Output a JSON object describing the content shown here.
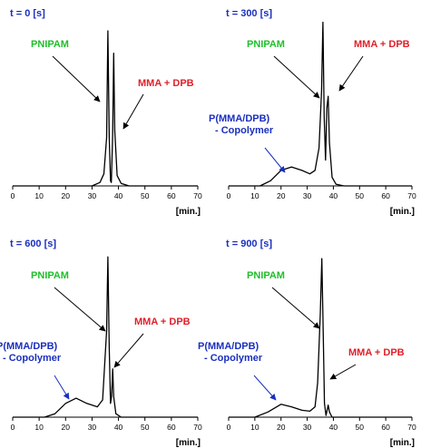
{
  "colors": {
    "title": "#1a2fbf",
    "pnipam": "#1fbf2a",
    "mma": "#e0202a",
    "copolymer": "#1a2fbf",
    "trace": "#000000",
    "copolymer_arrow": "#1a2fbf"
  },
  "chart_data": [
    {
      "type": "line",
      "title": "t = 0 [s]",
      "xunit": "[min.]",
      "xlim": [
        0,
        70
      ],
      "xticks": [
        0,
        10,
        20,
        30,
        40,
        50,
        60,
        70
      ],
      "annotations": {
        "pnipam": "PNIPAM",
        "mma": "MMA + DPB",
        "copolymer": []
      },
      "series": [
        {
          "values": [
            [
              0,
              0
            ],
            [
              30,
              0
            ],
            [
              33,
              0.02
            ],
            [
              34.5,
              0.07
            ],
            [
              35.5,
              0.28
            ],
            [
              36,
              0.9
            ],
            [
              36.5,
              0.28
            ],
            [
              37,
              0.03
            ],
            [
              37.3,
              0.02
            ],
            [
              37.8,
              0.3
            ],
            [
              38.2,
              0.77
            ],
            [
              38.6,
              0.32
            ],
            [
              39.5,
              0.06
            ],
            [
              41,
              0.015
            ],
            [
              44,
              0
            ],
            [
              70,
              0
            ]
          ]
        }
      ]
    },
    {
      "type": "line",
      "title": "t = 300 [s]",
      "xunit": "[min.]",
      "xlim": [
        0,
        70
      ],
      "xticks": [
        0,
        10,
        20,
        30,
        40,
        50,
        60,
        70
      ],
      "annotations": {
        "pnipam": "PNIPAM",
        "mma": "MMA + DPB",
        "copolymer": [
          "P(MMA/DPB)",
          "- Copolymer"
        ]
      },
      "series": [
        {
          "values": [
            [
              0,
              0
            ],
            [
              12,
              0
            ],
            [
              16,
              0.03
            ],
            [
              20,
              0.09
            ],
            [
              24,
              0.11
            ],
            [
              28,
              0.09
            ],
            [
              31,
              0.07
            ],
            [
              33,
              0.09
            ],
            [
              34.5,
              0.22
            ],
            [
              35.5,
              0.55
            ],
            [
              36,
              0.95
            ],
            [
              36.5,
              0.4
            ],
            [
              37,
              0.15
            ],
            [
              37.5,
              0.45
            ],
            [
              38,
              0.52
            ],
            [
              38.5,
              0.25
            ],
            [
              39.5,
              0.05
            ],
            [
              41,
              0.01
            ],
            [
              44,
              0
            ],
            [
              70,
              0
            ]
          ]
        }
      ]
    },
    {
      "type": "line",
      "title": "t = 600 [s]",
      "xunit": "[min.]",
      "xlim": [
        0,
        70
      ],
      "xticks": [
        0,
        10,
        20,
        30,
        40,
        50,
        60,
        70
      ],
      "annotations": {
        "pnipam": "PNIPAM",
        "mma": "MMA + DPB",
        "copolymer": [
          "P(MMA/DPB)",
          "- Copolymer"
        ]
      },
      "series": [
        {
          "values": [
            [
              0,
              0
            ],
            [
              12,
              0
            ],
            [
              16,
              0.02
            ],
            [
              20,
              0.08
            ],
            [
              24,
              0.11
            ],
            [
              28,
              0.08
            ],
            [
              32,
              0.06
            ],
            [
              34,
              0.1
            ],
            [
              35.5,
              0.5
            ],
            [
              36,
              0.93
            ],
            [
              36.5,
              0.4
            ],
            [
              37,
              0.08
            ],
            [
              37.4,
              0.12
            ],
            [
              37.8,
              0.28
            ],
            [
              38.2,
              0.12
            ],
            [
              39,
              0.02
            ],
            [
              41,
              0
            ],
            [
              70,
              0
            ]
          ]
        }
      ]
    },
    {
      "type": "line",
      "title": "t = 900 [s]",
      "xunit": "[min.]",
      "xlim": [
        0,
        70
      ],
      "xticks": [
        0,
        10,
        20,
        30,
        40,
        50,
        60,
        70
      ],
      "annotations": {
        "pnipam": "PNIPAM",
        "mma": "MMA + DPB",
        "copolymer": [
          "P(MMA/DPB)",
          "- Copolymer"
        ]
      },
      "series": [
        {
          "values": [
            [
              0,
              0
            ],
            [
              10,
              0
            ],
            [
              15,
              0.03
            ],
            [
              20,
              0.075
            ],
            [
              24,
              0.06
            ],
            [
              28,
              0.04
            ],
            [
              31,
              0.035
            ],
            [
              33,
              0.06
            ],
            [
              34,
              0.2
            ],
            [
              35,
              0.6
            ],
            [
              35.6,
              0.92
            ],
            [
              36.1,
              0.5
            ],
            [
              36.6,
              0.08
            ],
            [
              37.2,
              0.01
            ],
            [
              37.6,
              0.04
            ],
            [
              38,
              0.07
            ],
            [
              38.5,
              0.03
            ],
            [
              39.5,
              0
            ],
            [
              70,
              0
            ]
          ]
        }
      ]
    }
  ]
}
